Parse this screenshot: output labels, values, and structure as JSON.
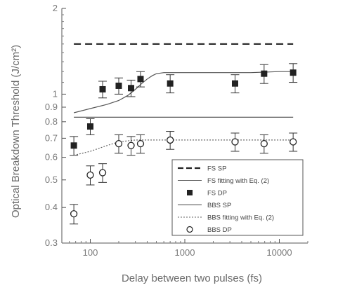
{
  "chart_data": {
    "type": "scatter",
    "title": "",
    "xlabel": "Delay between two pulses (fs)",
    "ylabel": "Optical Breakdown Threshold (J/cm²)",
    "xscale": "log",
    "yscale": "log",
    "xlim": [
      50,
      20000
    ],
    "ylim": [
      0.3,
      2
    ],
    "xticks": [
      {
        "value": 100,
        "label": "100"
      },
      {
        "value": 1000,
        "label": "1000"
      },
      {
        "value": 10000,
        "label": "10000"
      }
    ],
    "yticks": [
      {
        "value": 0.3,
        "label": "0.3"
      },
      {
        "value": 0.4,
        "label": "0.4"
      },
      {
        "value": 0.5,
        "label": "0.5"
      },
      {
        "value": 0.6,
        "label": "0.6"
      },
      {
        "value": 0.7,
        "label": "0.7"
      },
      {
        "value": 0.8,
        "label": "0.8"
      },
      {
        "value": 0.9,
        "label": "0.9"
      },
      {
        "value": 1,
        "label": "1"
      },
      {
        "value": 2,
        "label": "2"
      }
    ],
    "grid": false,
    "legend_position": "bottom-right",
    "series": [
      {
        "name": "FS SP",
        "kind": "hline",
        "style": "dashed",
        "color": "#222222",
        "y": 1.5,
        "x": [
          67,
          14000
        ]
      },
      {
        "name": "FS fitting with Eq. (2)",
        "kind": "line",
        "style": "solid",
        "color": "#555555",
        "x": [
          67,
          100,
          150,
          200,
          250,
          300,
          350,
          400,
          450,
          500,
          600,
          800,
          1000,
          2000,
          5000,
          10000,
          14000
        ],
        "y": [
          0.86,
          0.89,
          0.92,
          0.95,
          0.99,
          1.04,
          1.09,
          1.13,
          1.16,
          1.18,
          1.19,
          1.19,
          1.19,
          1.19,
          1.19,
          1.2,
          1.2
        ]
      },
      {
        "name": "FS DP",
        "kind": "points",
        "marker": "filled-square",
        "color": "#222222",
        "x": [
          67,
          100,
          135,
          200,
          270,
          340,
          700,
          3400,
          6900,
          14000
        ],
        "y": [
          0.66,
          0.77,
          1.04,
          1.07,
          1.05,
          1.13,
          1.09,
          1.09,
          1.18,
          1.19
        ],
        "err": [
          0.05,
          0.05,
          0.07,
          0.07,
          0.07,
          0.07,
          0.08,
          0.08,
          0.09,
          0.09
        ]
      },
      {
        "name": "BBS SP",
        "kind": "hline",
        "style": "solid",
        "color": "#444444",
        "y": 0.83,
        "x": [
          67,
          14000
        ]
      },
      {
        "name": "BBS fitting with Eq. (2)",
        "kind": "line",
        "style": "dotted",
        "color": "#666666",
        "x": [
          67,
          100,
          150,
          200,
          300,
          500,
          1000,
          5000,
          14000
        ],
        "y": [
          0.61,
          0.63,
          0.66,
          0.68,
          0.69,
          0.69,
          0.69,
          0.69,
          0.69
        ]
      },
      {
        "name": "BBS DP",
        "kind": "points",
        "marker": "open-circle",
        "color": "#222222",
        "x": [
          67,
          100,
          135,
          200,
          270,
          340,
          700,
          3400,
          6900,
          14000
        ],
        "y": [
          0.38,
          0.52,
          0.53,
          0.67,
          0.66,
          0.67,
          0.69,
          0.68,
          0.67,
          0.68
        ],
        "err": [
          0.03,
          0.04,
          0.04,
          0.05,
          0.05,
          0.05,
          0.05,
          0.05,
          0.05,
          0.05
        ]
      }
    ]
  }
}
